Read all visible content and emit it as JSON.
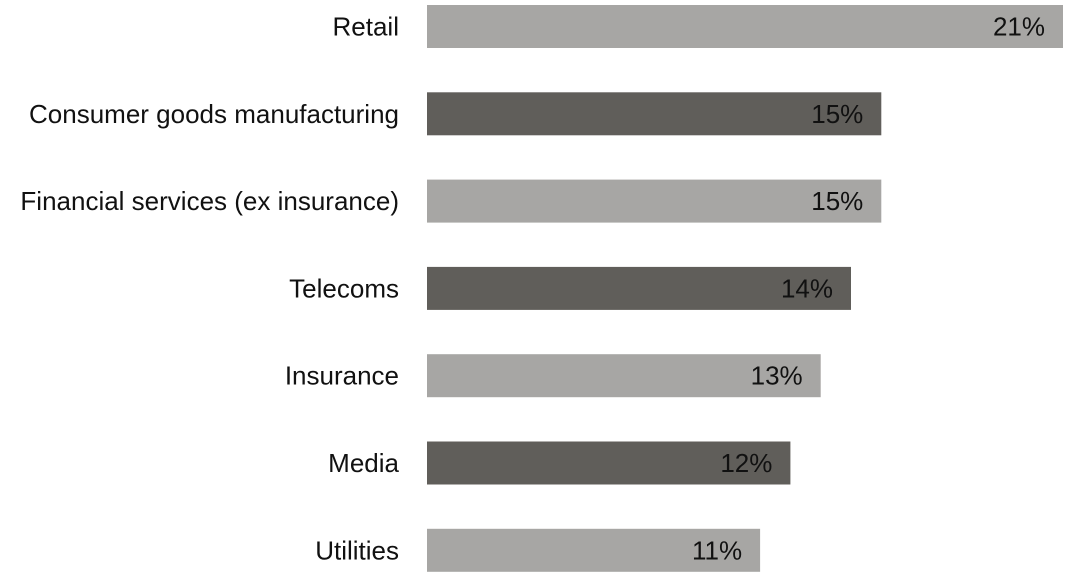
{
  "chart_data": {
    "type": "bar",
    "orientation": "horizontal",
    "title": "",
    "xlabel": "",
    "ylabel": "",
    "xlim": [
      0,
      21
    ],
    "grid": false,
    "legend": "none",
    "categories": [
      "Retail",
      "Consumer goods manufacturing",
      "Financial services (ex insurance)",
      "Telecoms",
      "Insurance",
      "Media",
      "Utilities"
    ],
    "values": [
      21,
      15,
      15,
      14,
      13,
      12,
      11
    ],
    "value_labels": [
      "21%",
      "15%",
      "15%",
      "14%",
      "13%",
      "12%",
      "11%"
    ],
    "bar_colors": [
      "#a7a6a4",
      "#605e5a",
      "#a7a6a4",
      "#605e5a",
      "#a7a6a4",
      "#605e5a",
      "#a7a6a4"
    ]
  }
}
